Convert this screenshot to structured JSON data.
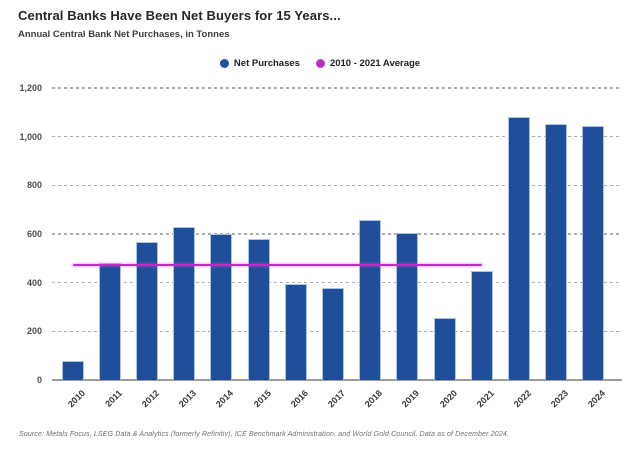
{
  "header": {
    "title": "Central Banks Have Been Net Buyers for 15 Years...",
    "subtitle": "Annual Central Bank Net Purchases, in Tonnes"
  },
  "legend": {
    "items": [
      {
        "label": "Net Purchases",
        "color": "#1F4E9B"
      },
      {
        "label": "2010 - 2021 Average",
        "color": "#BB2FC7"
      }
    ]
  },
  "footer": {
    "source": "Source: Metals Focus, LSEG Data & Analytics (formerly Refinitiv), ICE Benchmark Administration, and World Gold Council. Data as of December 2024."
  },
  "chart_data": {
    "type": "bar",
    "title": "Central Banks Have Been Net Buyers for 15 Years...",
    "subtitle": "Annual Central Bank Net Purchases, in Tonnes",
    "categories": [
      "2010",
      "2011",
      "2012",
      "2013",
      "2014",
      "2015",
      "2016",
      "2017",
      "2018",
      "2019",
      "2020",
      "2021",
      "2022",
      "2023",
      "2024"
    ],
    "series": [
      {
        "name": "Net Purchases",
        "type": "bar",
        "color": "#1F4E9B",
        "values": [
          79,
          481,
          569,
          629,
          601,
          580,
          395,
          379,
          656,
          605,
          255,
          450,
          1082,
          1051,
          1045
        ]
      }
    ],
    "average_line": {
      "name": "2010 - 2021 Average",
      "value": 473,
      "color": "#BB2FC7",
      "from_category": "2010",
      "to_category": "2021"
    },
    "xlabel": "",
    "ylabel": "",
    "ylim": [
      0,
      1200
    ],
    "yticks": [
      0,
      200,
      400,
      600,
      800,
      1000,
      1200
    ],
    "ytick_labels": [
      "0",
      "200",
      "400",
      "600",
      "800",
      "1,000",
      "1,200"
    ],
    "grid": "horizontal-dashed",
    "legend_position": "top-center"
  }
}
